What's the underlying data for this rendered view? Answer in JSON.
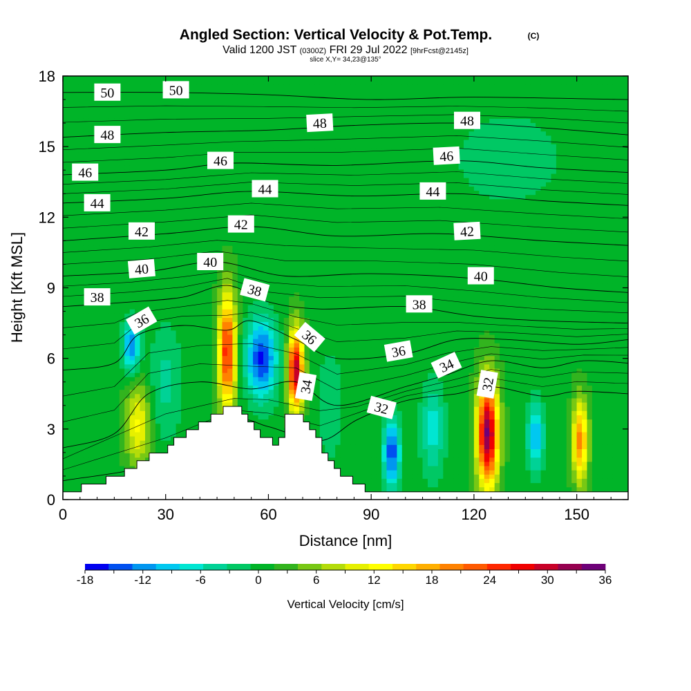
{
  "chart_data": {
    "type": "heatmap",
    "title": "Angled Section: Vertical Velocity & Pot.Temp.",
    "title_mark": "(C)",
    "subtitle_main": "Valid 1200 JST",
    "subtitle_utc": "(0300Z)",
    "subtitle_date": "FRI 29 Jul 2022",
    "subtitle_fcst": "[9hrFcst@2145z]",
    "slice_label": "slice X,Y= 34,23@135°",
    "xlabel": "Distance [nm]",
    "ylabel": "Height [Kft MSL]",
    "xlim": [
      0,
      165
    ],
    "ylim": [
      0,
      18
    ],
    "x_ticks": [
      0,
      30,
      60,
      90,
      120,
      150
    ],
    "y_ticks": [
      0,
      3,
      6,
      9,
      12,
      15,
      18
    ],
    "colorbar": {
      "label": "Vertical Velocity [cm/s]",
      "min": -18,
      "max": 36,
      "step": 3,
      "tick_values": [
        -18,
        -12,
        -6,
        0,
        6,
        12,
        18,
        24,
        30,
        36
      ],
      "colors": [
        "#0000f0",
        "#0050f0",
        "#0096f0",
        "#00c8f0",
        "#00e6d2",
        "#00d296",
        "#00c864",
        "#00b428",
        "#32b41e",
        "#78c814",
        "#b4dc0a",
        "#e6f000",
        "#ffff00",
        "#ffd700",
        "#ffaf00",
        "#ff8200",
        "#ff5a00",
        "#ff2800",
        "#f00000",
        "#c80028",
        "#960050",
        "#6e0078"
      ]
    },
    "background_value": 1,
    "terrain": [
      [
        0,
        0.2
      ],
      [
        10,
        0.7
      ],
      [
        16,
        1
      ],
      [
        20,
        1.4
      ],
      [
        24,
        1.7
      ],
      [
        30,
        2.1
      ],
      [
        34,
        2.7
      ],
      [
        40,
        3.1
      ],
      [
        45,
        3.6
      ],
      [
        48,
        3.9
      ],
      [
        52,
        3.9
      ],
      [
        54,
        3.3
      ],
      [
        56,
        3.1
      ],
      [
        60,
        2.6
      ],
      [
        62,
        2.3
      ],
      [
        64,
        2.8
      ],
      [
        66,
        3.6
      ],
      [
        70,
        3.6
      ],
      [
        74,
        2.7
      ],
      [
        78,
        1.6
      ],
      [
        82,
        1
      ],
      [
        86,
        0.6
      ],
      [
        90,
        0.3
      ],
      [
        94,
        0.2
      ],
      [
        165,
        0.2
      ]
    ],
    "velocity_cells": [
      {
        "x": 22,
        "z": 3.2,
        "sx": 3.5,
        "sz": 1.8,
        "value": 11
      },
      {
        "x": 20,
        "z": 6.5,
        "sx": 2.5,
        "sz": 1.1,
        "value": -14
      },
      {
        "x": 30,
        "z": 5.0,
        "sx": 5,
        "sz": 2.5,
        "value": -5
      },
      {
        "x": 48,
        "z": 6.3,
        "sx": 2.5,
        "sz": 2.4,
        "value": 25
      },
      {
        "x": 58,
        "z": 6.0,
        "sx": 4.5,
        "sz": 1.7,
        "value": -17
      },
      {
        "x": 68,
        "z": 5.5,
        "sx": 2.2,
        "sz": 1.7,
        "value": 30
      },
      {
        "x": 78,
        "z": 4.0,
        "sx": 4,
        "sz": 2.5,
        "value": -4
      },
      {
        "x": 96,
        "z": 2.0,
        "sx": 2.5,
        "sz": 1.5,
        "value": -16
      },
      {
        "x": 108,
        "z": 3.0,
        "sx": 3.5,
        "sz": 2.0,
        "value": -8
      },
      {
        "x": 124,
        "z": 2.8,
        "sx": 3.0,
        "sz": 2.2,
        "value": 33
      },
      {
        "x": 138,
        "z": 2.7,
        "sx": 2.5,
        "sz": 1.5,
        "value": -11
      },
      {
        "x": 151,
        "z": 2.5,
        "sx": 2.2,
        "sz": 1.7,
        "value": 19
      },
      {
        "x": 130,
        "z": 14.5,
        "sx": 20,
        "sz": 2.5,
        "value": -3
      }
    ],
    "theta_lines": [
      {
        "label": "32",
        "points": [
          [
            0,
            0.8
          ],
          [
            30,
            1.6
          ],
          [
            50,
            3.3
          ],
          [
            60,
            3.1
          ],
          [
            75,
            2.5
          ],
          [
            86,
            3.4
          ],
          [
            100,
            4.2
          ],
          [
            115,
            4.5
          ],
          [
            125,
            4.8
          ],
          [
            140,
            4.4
          ],
          [
            150,
            4.6
          ],
          [
            165,
            4.5
          ]
        ]
      },
      {
        "label": "34",
        "points": [
          [
            0,
            2.2
          ],
          [
            15,
            2.8
          ],
          [
            25,
            4.5
          ],
          [
            40,
            5.0
          ],
          [
            55,
            4.7
          ],
          [
            68,
            5.0
          ],
          [
            80,
            4.0
          ],
          [
            100,
            4.8
          ],
          [
            112,
            5.3
          ],
          [
            125,
            5.9
          ],
          [
            140,
            5.6
          ],
          [
            152,
            5.9
          ],
          [
            165,
            5.8
          ]
        ]
      },
      {
        "label": "36",
        "points": [
          [
            0,
            5.5
          ],
          [
            15,
            5.8
          ],
          [
            22,
            7.0
          ],
          [
            35,
            7.4
          ],
          [
            48,
            7.2
          ],
          [
            55,
            7.6
          ],
          [
            68,
            6.8
          ],
          [
            80,
            6.0
          ],
          [
            100,
            6.2
          ],
          [
            115,
            6.8
          ],
          [
            130,
            6.8
          ],
          [
            150,
            6.6
          ],
          [
            165,
            6.8
          ]
        ]
      },
      {
        "label": "38",
        "points": [
          [
            0,
            8.2
          ],
          [
            20,
            8.4
          ],
          [
            35,
            8.6
          ],
          [
            48,
            9.1
          ],
          [
            60,
            8.4
          ],
          [
            75,
            8.1
          ],
          [
            100,
            8.2
          ],
          [
            120,
            7.8
          ],
          [
            140,
            7.6
          ],
          [
            165,
            7.5
          ]
        ]
      },
      {
        "label": "40",
        "points": [
          [
            0,
            9.5
          ],
          [
            25,
            9.7
          ],
          [
            45,
            10.1
          ],
          [
            65,
            9.5
          ],
          [
            90,
            9.6
          ],
          [
            120,
            9.4
          ],
          [
            145,
            9.0
          ],
          [
            165,
            8.8
          ]
        ]
      },
      {
        "label": "42",
        "points": [
          [
            0,
            11.0
          ],
          [
            30,
            11.3
          ],
          [
            55,
            11.6
          ],
          [
            80,
            11.2
          ],
          [
            110,
            11.3
          ],
          [
            140,
            11.0
          ],
          [
            165,
            10.8
          ]
        ]
      },
      {
        "label": "44",
        "points": [
          [
            0,
            12.6
          ],
          [
            30,
            12.8
          ],
          [
            55,
            13.1
          ],
          [
            85,
            12.9
          ],
          [
            115,
            13.0
          ],
          [
            140,
            12.7
          ],
          [
            165,
            12.5
          ]
        ]
      },
      {
        "label": "46",
        "points": [
          [
            0,
            13.8
          ],
          [
            30,
            14.0
          ],
          [
            50,
            14.3
          ],
          [
            80,
            14.2
          ],
          [
            115,
            14.4
          ],
          [
            140,
            14.1
          ],
          [
            165,
            13.9
          ]
        ]
      },
      {
        "label": "48",
        "points": [
          [
            0,
            15.4
          ],
          [
            30,
            15.6
          ],
          [
            60,
            15.7
          ],
          [
            85,
            15.9
          ],
          [
            115,
            16.0
          ],
          [
            140,
            15.8
          ],
          [
            165,
            15.5
          ]
        ]
      },
      {
        "label": "50",
        "points": [
          [
            0,
            17.3
          ],
          [
            30,
            17.3
          ],
          [
            60,
            17.2
          ],
          [
            90,
            17.0
          ],
          [
            120,
            17.1
          ],
          [
            165,
            17.0
          ]
        ]
      }
    ],
    "contour_labels": [
      {
        "text": "50",
        "x": 13,
        "y": 17.3,
        "angle": 0
      },
      {
        "text": "50",
        "x": 33,
        "y": 17.4,
        "angle": 0
      },
      {
        "text": "48",
        "x": 13,
        "y": 15.5,
        "angle": 0
      },
      {
        "text": "48",
        "x": 75,
        "y": 16.0,
        "angle": -3
      },
      {
        "text": "48",
        "x": 118,
        "y": 16.1,
        "angle": 0
      },
      {
        "text": "46",
        "x": 6.5,
        "y": 13.9,
        "angle": 0
      },
      {
        "text": "46",
        "x": 46,
        "y": 14.4,
        "angle": 0
      },
      {
        "text": "46",
        "x": 112,
        "y": 14.6,
        "angle": -3
      },
      {
        "text": "44",
        "x": 10,
        "y": 12.6,
        "angle": 0
      },
      {
        "text": "44",
        "x": 59,
        "y": 13.2,
        "angle": 0
      },
      {
        "text": "44",
        "x": 108,
        "y": 13.1,
        "angle": 0
      },
      {
        "text": "42",
        "x": 23,
        "y": 11.4,
        "angle": 0
      },
      {
        "text": "42",
        "x": 52,
        "y": 11.7,
        "angle": 0
      },
      {
        "text": "42",
        "x": 118,
        "y": 11.4,
        "angle": -3
      },
      {
        "text": "40",
        "x": 23,
        "y": 9.8,
        "angle": -5
      },
      {
        "text": "40",
        "x": 43,
        "y": 10.1,
        "angle": 0
      },
      {
        "text": "40",
        "x": 122,
        "y": 9.5,
        "angle": 0
      },
      {
        "text": "38",
        "x": 10,
        "y": 8.6,
        "angle": 0
      },
      {
        "text": "38",
        "x": 56,
        "y": 8.9,
        "angle": 15
      },
      {
        "text": "38",
        "x": 104,
        "y": 8.3,
        "angle": 0
      },
      {
        "text": "36",
        "x": 23,
        "y": 7.6,
        "angle": -30
      },
      {
        "text": "36",
        "x": 72,
        "y": 6.9,
        "angle": 40
      },
      {
        "text": "36",
        "x": 98,
        "y": 6.3,
        "angle": -10
      },
      {
        "text": "34",
        "x": 71,
        "y": 4.8,
        "angle": -80
      },
      {
        "text": "34",
        "x": 112,
        "y": 5.7,
        "angle": -25
      },
      {
        "text": "32",
        "x": 93,
        "y": 3.9,
        "angle": 15
      },
      {
        "text": "32",
        "x": 124,
        "y": 4.9,
        "angle": -80
      }
    ]
  }
}
